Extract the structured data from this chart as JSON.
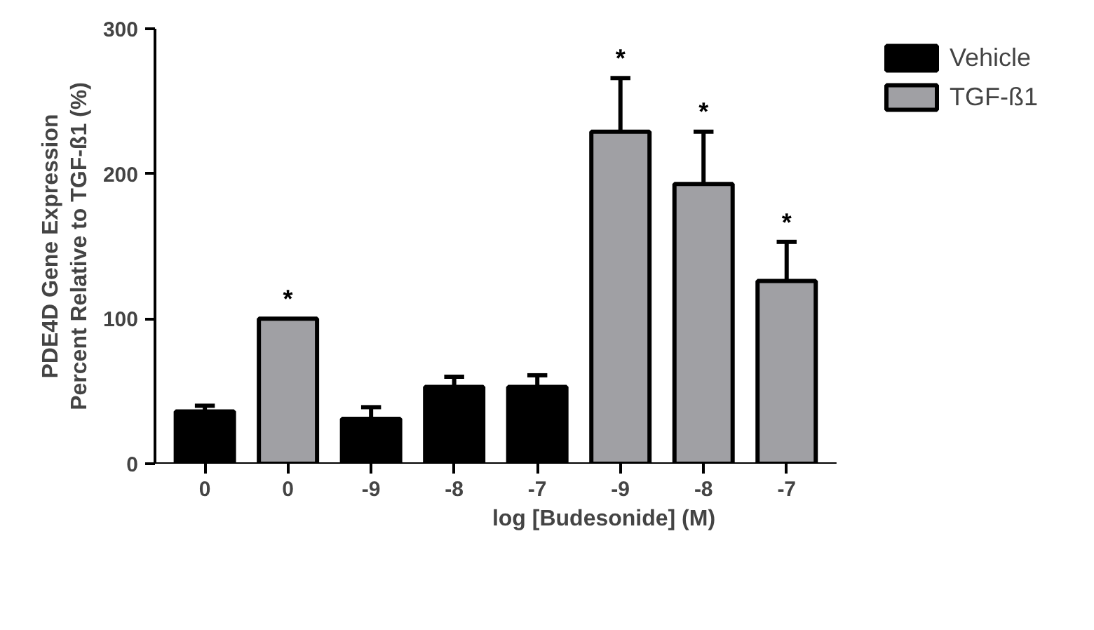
{
  "chart_data": {
    "type": "bar",
    "xlabel": "log [Budesonide] (M)",
    "ylabel": "PDE4D Gene Expression\nPercent Relative to TGF-ß1 (%)",
    "categories": [
      "0",
      "0",
      "-9",
      "-8",
      "-7",
      "-9",
      "-8",
      "-7"
    ],
    "series": [
      {
        "name": "Vehicle",
        "color": "#000000",
        "values": [
          36,
          null,
          31,
          53,
          53,
          null,
          null,
          null
        ],
        "errors": [
          [
            36,
            40
          ],
          null,
          [
            31,
            39
          ],
          [
            53,
            60
          ],
          [
            53,
            61
          ],
          null,
          null,
          null
        ]
      },
      {
        "name": "TGF-ß1",
        "color": "#a0a0a4",
        "values": [
          null,
          100,
          null,
          null,
          null,
          229,
          193,
          126
        ],
        "errors": [
          null,
          null,
          null,
          null,
          null,
          [
            229,
            266
          ],
          [
            193,
            229
          ],
          [
            126,
            153
          ]
        ],
        "value_labels": [
          null,
          "*",
          null,
          null,
          null,
          "*",
          "*",
          "*"
        ]
      }
    ],
    "ylim": [
      0,
      300
    ],
    "yticks": [
      0,
      100,
      200,
      300
    ],
    "grid": false,
    "legend": "top right"
  }
}
